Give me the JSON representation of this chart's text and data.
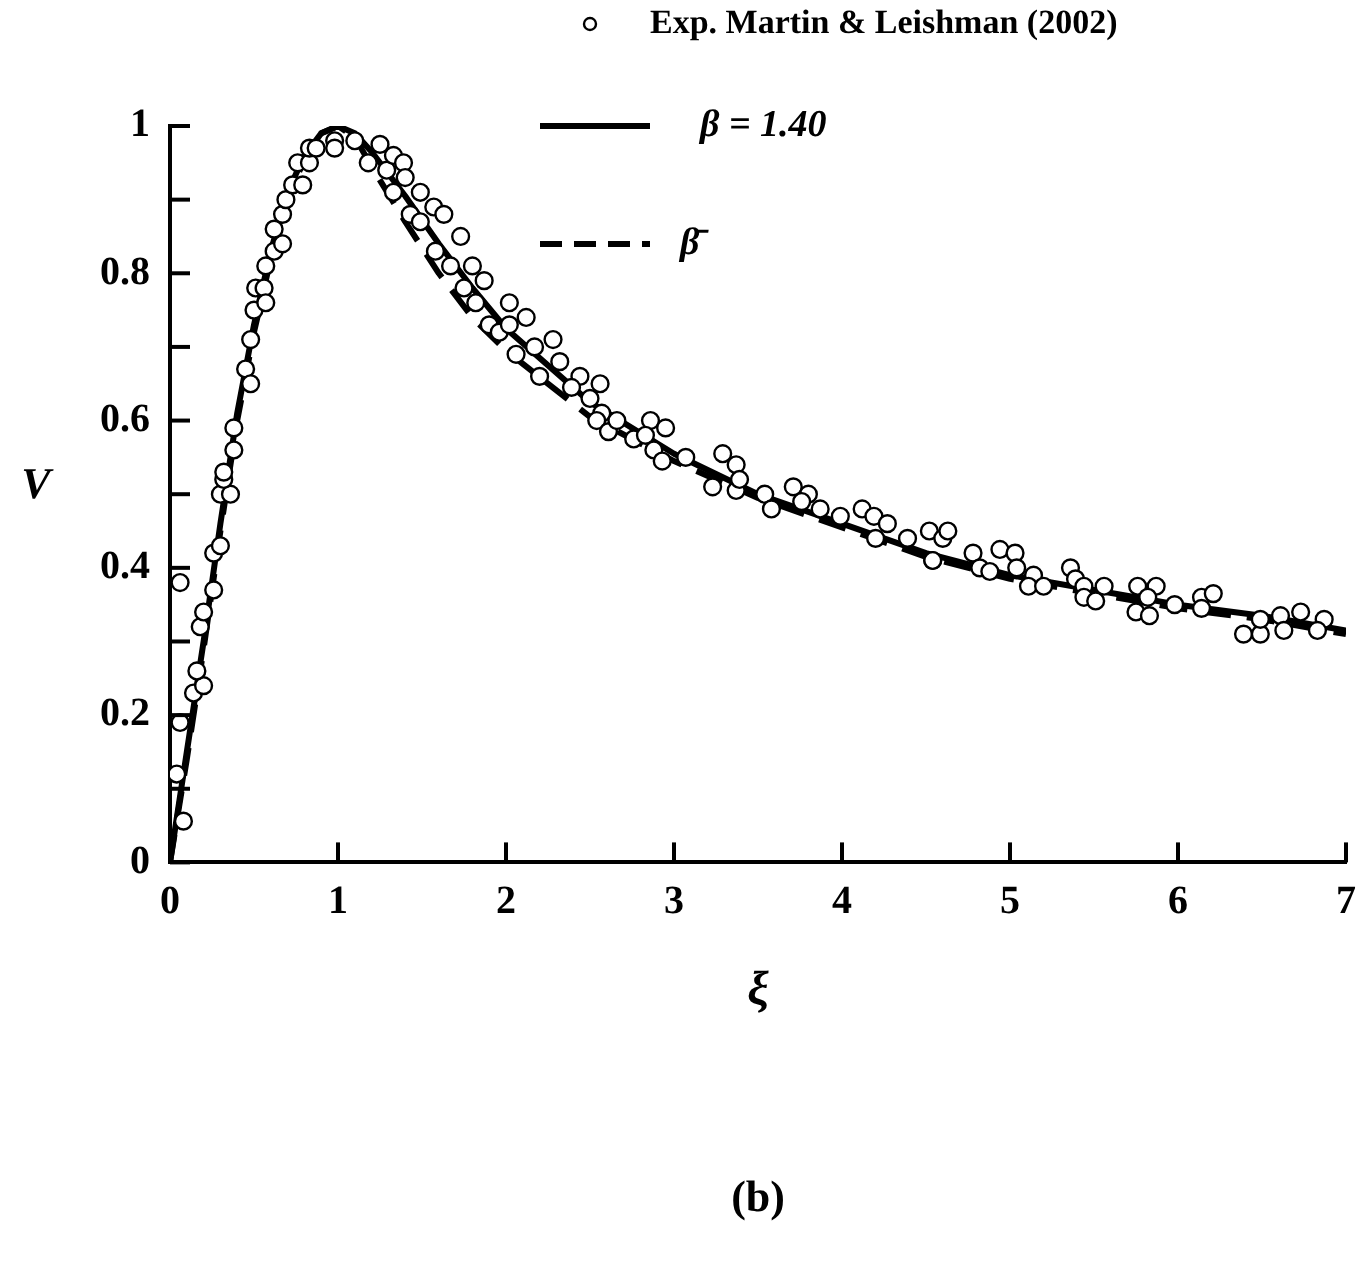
{
  "chart_data": {
    "type": "scatter",
    "xlabel": "ξ",
    "ylabel": "V",
    "annotations": [
      "(b)"
    ],
    "xlim": [
      0,
      7
    ],
    "xticks": [
      0,
      1,
      2,
      3,
      4,
      5,
      6,
      7
    ],
    "ylim": [
      0,
      1
    ],
    "yticks": [
      0,
      {
        "value": 0.1,
        "label": null
      },
      0.2,
      {
        "value": 0.3,
        "label": null
      },
      0.4,
      {
        "value": 0.5,
        "label": null
      },
      0.6,
      {
        "value": 0.7,
        "label": null
      },
      0.8,
      {
        "value": 0.9,
        "label": null
      },
      1
    ],
    "grid": false,
    "legend": "top",
    "series": [
      {
        "name": "Exp. Martin & Leishman (2002)",
        "marker": "circle",
        "color": "#000000",
        "x": [
          0.06,
          0.08,
          0.04,
          0.06,
          0.14,
          0.2,
          0.16,
          0.18,
          0.2,
          0.26,
          0.26,
          0.3,
          0.3,
          0.36,
          0.32,
          0.32,
          0.38,
          0.38,
          0.45,
          0.48,
          0.48,
          0.5,
          0.51,
          0.56,
          0.57,
          0.57,
          0.62,
          0.67,
          0.62,
          0.67,
          0.69,
          0.73,
          0.79,
          0.76,
          0.83,
          0.83,
          0.87,
          0.98,
          0.98,
          1.1,
          1.18,
          1.25,
          1.29,
          1.33,
          1.39,
          1.33,
          1.4,
          1.43,
          1.49,
          1.49,
          1.57,
          1.58,
          1.63,
          1.67,
          1.73,
          1.75,
          1.8,
          1.82,
          1.87,
          1.9,
          1.96,
          2.02,
          2.02,
          2.06,
          2.12,
          2.17,
          2.2,
          2.28,
          2.32,
          2.44,
          2.39,
          2.56,
          2.5,
          2.57,
          2.54,
          2.61,
          2.66,
          2.76,
          2.86,
          2.83,
          2.88,
          2.93,
          2.95,
          3.07,
          3.23,
          3.29,
          3.37,
          3.37,
          3.39,
          3.54,
          3.58,
          3.71,
          3.8,
          3.76,
          3.87,
          3.99,
          4.12,
          4.19,
          4.27,
          4.2,
          4.39,
          4.52,
          4.54,
          4.6,
          4.63,
          4.54,
          4.78,
          4.82,
          4.88,
          4.94,
          5.03,
          5.04,
          5.14,
          5.11,
          5.2,
          5.36,
          5.39,
          5.44,
          5.44,
          5.51,
          5.56,
          5.76,
          5.87,
          5.75,
          5.83,
          5.82,
          5.98,
          6.14,
          6.21,
          6.14,
          6.39,
          6.49,
          6.49,
          6.61,
          6.63,
          6.73,
          6.87,
          6.83
        ],
        "values": [
          0.38,
          0.056,
          0.12,
          0.19,
          0.23,
          0.24,
          0.26,
          0.32,
          0.34,
          0.37,
          0.42,
          0.43,
          0.5,
          0.5,
          0.52,
          0.53,
          0.56,
          0.59,
          0.67,
          0.65,
          0.71,
          0.75,
          0.78,
          0.78,
          0.76,
          0.81,
          0.83,
          0.84,
          0.86,
          0.88,
          0.9,
          0.92,
          0.92,
          0.95,
          0.95,
          0.97,
          0.97,
          0.98,
          0.97,
          0.98,
          0.95,
          0.975,
          0.94,
          0.96,
          0.95,
          0.91,
          0.93,
          0.88,
          0.91,
          0.87,
          0.89,
          0.83,
          0.88,
          0.81,
          0.85,
          0.78,
          0.81,
          0.76,
          0.79,
          0.73,
          0.72,
          0.76,
          0.73,
          0.69,
          0.74,
          0.7,
          0.66,
          0.71,
          0.68,
          0.66,
          0.645,
          0.65,
          0.63,
          0.61,
          0.6,
          0.585,
          0.6,
          0.575,
          0.6,
          0.58,
          0.56,
          0.545,
          0.59,
          0.55,
          0.51,
          0.555,
          0.54,
          0.505,
          0.52,
          0.5,
          0.48,
          0.51,
          0.5,
          0.49,
          0.48,
          0.47,
          0.48,
          0.47,
          0.46,
          0.44,
          0.44,
          0.45,
          0.41,
          0.44,
          0.45,
          0.41,
          0.42,
          0.4,
          0.395,
          0.425,
          0.42,
          0.4,
          0.39,
          0.375,
          0.375,
          0.4,
          0.385,
          0.375,
          0.36,
          0.355,
          0.375,
          0.375,
          0.375,
          0.34,
          0.335,
          0.36,
          0.35,
          0.36,
          0.365,
          0.345,
          0.31,
          0.31,
          0.33,
          0.335,
          0.315,
          0.34,
          0.33,
          0.315
        ]
      },
      {
        "name": "β = 1.40",
        "type": "line",
        "line_style": "solid",
        "color": "#000000",
        "x": [
          0,
          0.1,
          0.2,
          0.3,
          0.4,
          0.5,
          0.6,
          0.7,
          0.8,
          0.9,
          1.0,
          1.1,
          1.2,
          1.4,
          1.6,
          1.8,
          2.0,
          2.5,
          3.0,
          3.5,
          4.0,
          4.5,
          5.0,
          5.5,
          6.0,
          6.5,
          7.0
        ],
        "values": [
          0,
          0.15,
          0.3,
          0.46,
          0.61,
          0.73,
          0.83,
          0.91,
          0.96,
          0.99,
          1.0,
          0.99,
          0.965,
          0.905,
          0.84,
          0.78,
          0.725,
          0.625,
          0.555,
          0.5,
          0.46,
          0.42,
          0.39,
          0.37,
          0.35,
          0.335,
          0.315
        ]
      },
      {
        "name": "β̄",
        "type": "line",
        "line_style": "dashed",
        "color": "#000000",
        "x": [
          0,
          0.1,
          0.2,
          0.3,
          0.4,
          0.5,
          0.6,
          0.7,
          0.8,
          0.9,
          1.0,
          1.1,
          1.2,
          1.4,
          1.6,
          1.8,
          2.0,
          2.5,
          3.0,
          3.5,
          4.0,
          4.5,
          5.0,
          5.5,
          6.0,
          6.5,
          7.0
        ],
        "values": [
          0,
          0.14,
          0.29,
          0.45,
          0.6,
          0.72,
          0.82,
          0.9,
          0.955,
          0.99,
          1.0,
          0.985,
          0.945,
          0.87,
          0.8,
          0.74,
          0.695,
          0.605,
          0.545,
          0.495,
          0.455,
          0.415,
          0.385,
          0.365,
          0.345,
          0.33,
          0.31
        ]
      }
    ]
  }
}
